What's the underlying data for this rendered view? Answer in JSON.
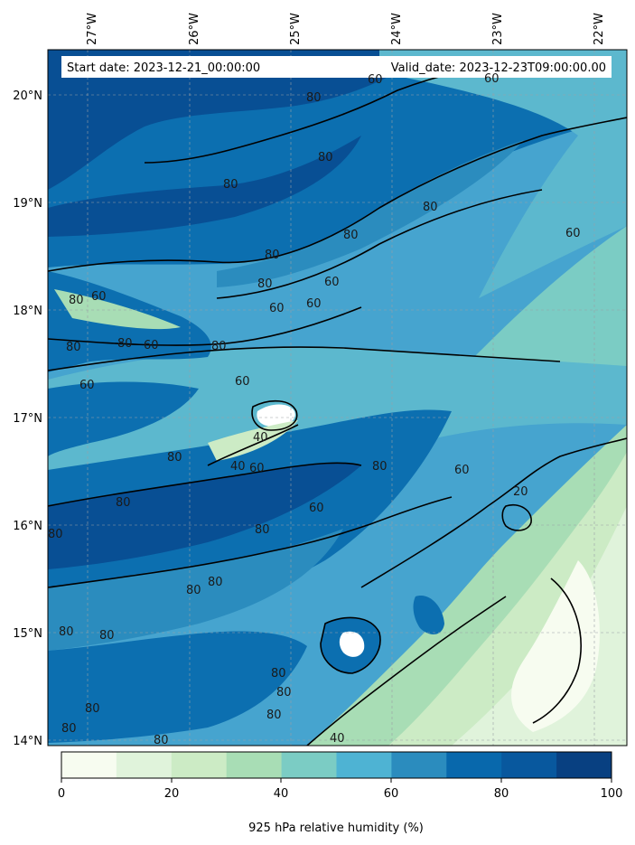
{
  "header": {
    "start_date": "Start date: 2023-12-21_00:00:00",
    "valid_date": "Valid_date: 2023-12-23T09:00:00.00"
  },
  "map": {
    "lon_labels": [
      "27°W",
      "26°W",
      "25°W",
      "24°W",
      "23°W",
      "22°W"
    ],
    "lat_labels": [
      "20°N",
      "19°N",
      "18°N",
      "17°N",
      "16°N",
      "15°N",
      "14°N"
    ],
    "contour_labels": [
      {
        "text": "60",
        "value": 60
      },
      {
        "text": "60",
        "value": 60
      },
      {
        "text": "80",
        "value": 80
      },
      {
        "text": "80",
        "value": 80
      },
      {
        "text": "80",
        "value": 80
      },
      {
        "text": "80",
        "value": 80
      },
      {
        "text": "80",
        "value": 80
      },
      {
        "text": "80",
        "value": 80
      },
      {
        "text": "60",
        "value": 60
      },
      {
        "text": "60",
        "value": 60
      },
      {
        "text": "60",
        "value": 60
      },
      {
        "text": "60",
        "value": 60
      },
      {
        "text": "80",
        "value": 80
      },
      {
        "text": "60",
        "value": 60
      },
      {
        "text": "80",
        "value": 80
      },
      {
        "text": "80",
        "value": 80
      },
      {
        "text": "80",
        "value": 80
      },
      {
        "text": "60",
        "value": 60
      },
      {
        "text": "60",
        "value": 60
      },
      {
        "text": "60",
        "value": 60
      },
      {
        "text": "80",
        "value": 80
      },
      {
        "text": "40",
        "value": 40
      },
      {
        "text": "40",
        "value": 40
      },
      {
        "text": "60",
        "value": 60
      },
      {
        "text": "80",
        "value": 80
      },
      {
        "text": "80",
        "value": 80
      },
      {
        "text": "60",
        "value": 60
      },
      {
        "text": "20",
        "value": 20
      },
      {
        "text": "80",
        "value": 80
      },
      {
        "text": "80",
        "value": 80
      },
      {
        "text": "80",
        "value": 80
      },
      {
        "text": "80",
        "value": 80
      },
      {
        "text": "80",
        "value": 80
      },
      {
        "text": "60",
        "value": 60
      },
      {
        "text": "80",
        "value": 80
      },
      {
        "text": "80",
        "value": 80
      },
      {
        "text": "80",
        "value": 80
      },
      {
        "text": "80",
        "value": 80
      },
      {
        "text": "80",
        "value": 80
      },
      {
        "text": "80",
        "value": 80
      },
      {
        "text": "80",
        "value": 80
      },
      {
        "text": "40",
        "value": 40
      },
      {
        "text": "80",
        "value": 80
      }
    ]
  },
  "colorbar": {
    "ticks": [
      "0",
      "20",
      "40",
      "60",
      "80",
      "100"
    ],
    "label": "925 hPa relative humidity (%)",
    "colors": [
      "#f7fcf0",
      "#e0f3db",
      "#ccebc5",
      "#a8ddb5",
      "#7bccc4",
      "#4eb3d3",
      "#2b8cbe",
      "#0868ac",
      "#08589e",
      "#084081"
    ]
  },
  "colors": {
    "c0": "#f7fcf0",
    "c1": "#e0f3db",
    "c2": "#ccebc5",
    "c3": "#a8ddb5",
    "c4": "#7bccc4",
    "c5": "#5cb8ce",
    "c6": "#46a4cf",
    "c7": "#2b8cbe",
    "c8": "#0c6fb0",
    "c9": "#084f94"
  }
}
